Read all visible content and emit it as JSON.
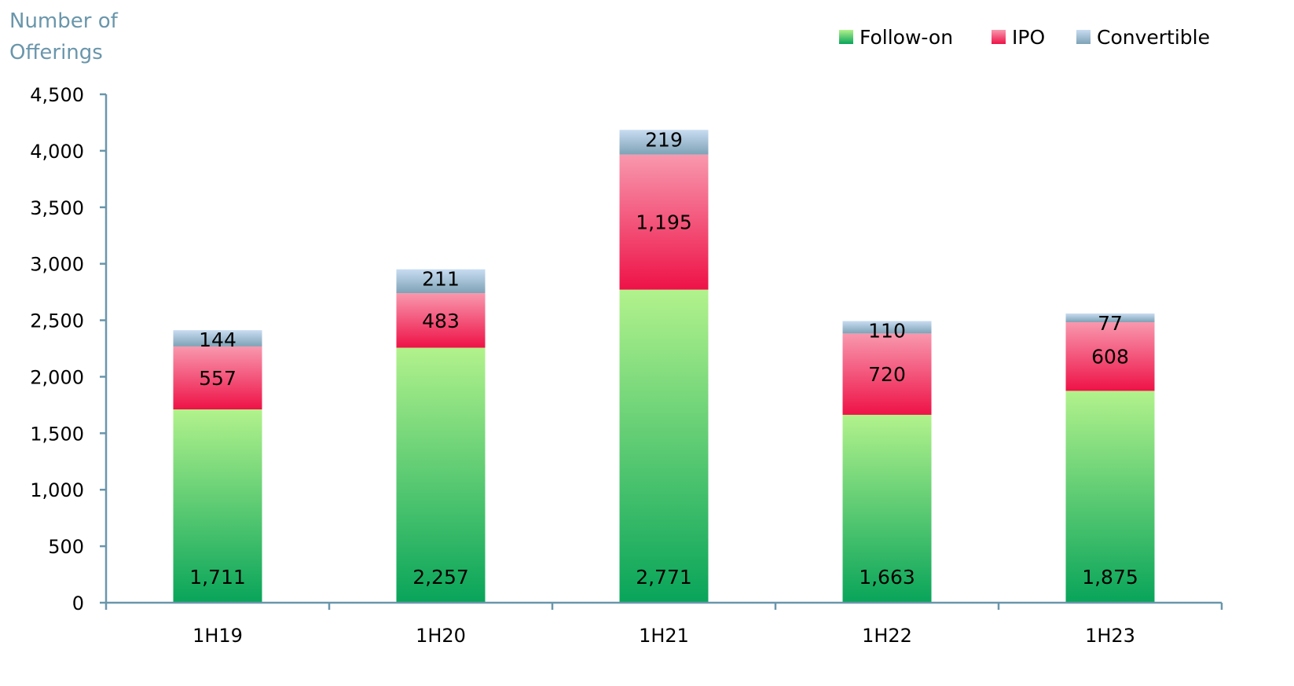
{
  "chart_data": {
    "type": "bar",
    "stacked": true,
    "ylabel": [
      "Number of",
      "Offerings"
    ],
    "xlabel": "",
    "ylim": [
      0,
      4500
    ],
    "yticks": [
      0,
      500,
      1000,
      1500,
      2000,
      2500,
      3000,
      3500,
      4000,
      4500
    ],
    "ytick_labels": [
      "0",
      "500",
      "1,000",
      "1,500",
      "2,000",
      "2,500",
      "3,000",
      "3,500",
      "4,000",
      "4,500"
    ],
    "categories": [
      "1H19",
      "1H20",
      "1H21",
      "1H22",
      "1H23"
    ],
    "series": [
      {
        "name": "Follow-on",
        "values": [
          1711,
          2257,
          2771,
          1663,
          1875
        ],
        "labels": [
          "1,711",
          "2,257",
          "2,771",
          "1,663",
          "1,875"
        ],
        "color_top": "#b2f28c",
        "color_bottom": "#08a45a"
      },
      {
        "name": "IPO",
        "values": [
          557,
          483,
          1195,
          720,
          608
        ],
        "labels": [
          "557",
          "483",
          "1,195",
          "720",
          "608"
        ],
        "color_top": "#f898ae",
        "color_bottom": "#ee1247"
      },
      {
        "name": "Convertible",
        "values": [
          144,
          211,
          219,
          110,
          77
        ],
        "labels": [
          "144",
          "211",
          "219",
          "110",
          "77"
        ],
        "color_top": "#c8dcf1",
        "color_bottom": "#7ea2b6"
      }
    ],
    "legend_position": "top-right",
    "grid": false,
    "axis_color": "#6a96ab"
  }
}
